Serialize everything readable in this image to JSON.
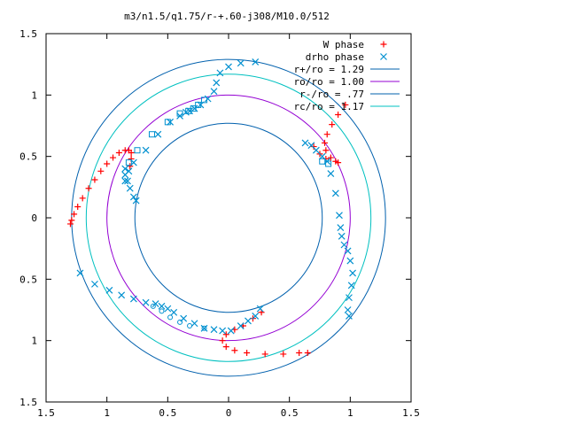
{
  "chart_data": {
    "type": "scatter",
    "title": "m3/n1.5/q1.75/r-+.60-j308/M10.0/512",
    "xlim": [
      -1.5,
      1.5
    ],
    "ylim": [
      -1.5,
      1.5
    ],
    "x_ticks": [
      -1.5,
      -1,
      -0.5,
      0,
      0.5,
      1,
      1.5
    ],
    "y_ticks": [
      -1.5,
      -1,
      -0.5,
      0,
      0.5,
      1,
      1.5
    ],
    "x_tick_labels": [
      "1.5",
      "1",
      "0.5",
      "0",
      "0.5",
      "1",
      "1.5"
    ],
    "y_tick_labels": [
      "1.5",
      "1",
      "0.5",
      "0",
      "0.5",
      "1",
      "1.5"
    ],
    "grid": false,
    "legend_position": "top-right",
    "circles": [
      {
        "name": "r+/ro = 1.29",
        "r": 1.29,
        "color": "#0060ad"
      },
      {
        "name": "ro/ro = 1.00",
        "r": 1.0,
        "color": "#9400d3"
      },
      {
        "name": "r-/ro = .77",
        "r": 0.77,
        "color": "#0060ad"
      },
      {
        "name": "rc/ro = 1.17",
        "r": 1.17,
        "color": "#00c0c0"
      }
    ],
    "series": [
      {
        "name": "W phase",
        "marker": "plus",
        "color": "#ff0000",
        "points": [
          [
            -1.3,
            -0.05
          ],
          [
            -1.29,
            -0.02
          ],
          [
            -1.27,
            0.03
          ],
          [
            -1.24,
            0.09
          ],
          [
            -1.2,
            0.16
          ],
          [
            -1.15,
            0.24
          ],
          [
            -1.1,
            0.31
          ],
          [
            -1.05,
            0.38
          ],
          [
            -1.0,
            0.44
          ],
          [
            -0.95,
            0.49
          ],
          [
            -0.9,
            0.53
          ],
          [
            -0.85,
            0.55
          ],
          [
            -0.82,
            0.55
          ],
          [
            -0.8,
            0.53
          ],
          [
            -0.8,
            0.48
          ],
          [
            -0.81,
            0.42
          ],
          [
            0.96,
            0.92
          ],
          [
            0.9,
            0.84
          ],
          [
            0.85,
            0.76
          ],
          [
            0.81,
            0.68
          ],
          [
            0.79,
            0.61
          ],
          [
            0.8,
            0.55
          ],
          [
            0.84,
            0.49
          ],
          [
            0.88,
            0.46
          ],
          [
            0.9,
            0.45
          ],
          [
            0.7,
            0.58
          ],
          [
            0.75,
            0.52
          ],
          [
            0.8,
            0.48
          ],
          [
            -0.05,
            -1.0
          ],
          [
            -0.02,
            -0.95
          ],
          [
            0.05,
            -0.91
          ],
          [
            0.12,
            -0.88
          ],
          [
            0.2,
            -0.82
          ],
          [
            0.27,
            -0.77
          ],
          [
            -0.02,
            -1.05
          ],
          [
            0.05,
            -1.08
          ],
          [
            0.15,
            -1.1
          ],
          [
            0.3,
            -1.11
          ],
          [
            0.45,
            -1.11
          ],
          [
            0.58,
            -1.1
          ],
          [
            0.65,
            -1.1
          ]
        ]
      },
      {
        "name": "drho phase",
        "marker": "cross",
        "color": "#0090d0",
        "points": [
          [
            0.22,
            1.27
          ],
          [
            0.1,
            1.26
          ],
          [
            0.0,
            1.23
          ],
          [
            -0.07,
            1.18
          ],
          [
            -0.1,
            1.1
          ],
          [
            -0.12,
            1.03
          ],
          [
            -0.17,
            0.97
          ],
          [
            -0.23,
            0.92
          ],
          [
            -0.28,
            0.89
          ],
          [
            -0.32,
            0.87
          ],
          [
            -0.35,
            0.86
          ],
          [
            -0.4,
            0.83
          ],
          [
            -0.48,
            0.78
          ],
          [
            -0.58,
            0.68
          ],
          [
            -0.68,
            0.55
          ],
          [
            -0.78,
            0.45
          ],
          [
            -0.82,
            0.38
          ],
          [
            -0.83,
            0.3
          ],
          [
            -0.81,
            0.24
          ],
          [
            -0.78,
            0.17
          ],
          [
            -0.76,
            0.14
          ],
          [
            -0.85,
            0.3
          ],
          [
            -0.85,
            0.35
          ],
          [
            -0.85,
            0.4
          ],
          [
            0.63,
            0.61
          ],
          [
            0.68,
            0.59
          ],
          [
            0.72,
            0.55
          ],
          [
            0.77,
            0.5
          ],
          [
            0.81,
            0.46
          ],
          [
            0.84,
            0.36
          ],
          [
            0.88,
            0.2
          ],
          [
            0.91,
            0.02
          ],
          [
            0.92,
            -0.08
          ],
          [
            0.93,
            -0.15
          ],
          [
            0.95,
            -0.22
          ],
          [
            0.98,
            -0.27
          ],
          [
            1.0,
            -0.35
          ],
          [
            1.02,
            -0.45
          ],
          [
            1.01,
            -0.55
          ],
          [
            0.99,
            -0.65
          ],
          [
            0.98,
            -0.75
          ],
          [
            0.99,
            -0.8
          ],
          [
            -1.22,
            -0.45
          ],
          [
            -1.1,
            -0.54
          ],
          [
            -0.98,
            -0.59
          ],
          [
            -0.88,
            -0.63
          ],
          [
            -0.78,
            -0.66
          ],
          [
            -0.68,
            -0.69
          ],
          [
            -0.6,
            -0.7
          ],
          [
            -0.55,
            -0.72
          ],
          [
            -0.5,
            -0.74
          ],
          [
            -0.45,
            -0.77
          ],
          [
            -0.37,
            -0.82
          ],
          [
            -0.28,
            -0.86
          ],
          [
            -0.2,
            -0.9
          ],
          [
            -0.12,
            -0.91
          ],
          [
            -0.05,
            -0.92
          ],
          [
            0.02,
            -0.92
          ],
          [
            0.1,
            -0.88
          ],
          [
            0.16,
            -0.84
          ],
          [
            0.22,
            -0.8
          ],
          [
            0.26,
            -0.74
          ]
        ]
      },
      {
        "name": "",
        "marker": "square",
        "color": "#0090d0",
        "points": [
          [
            -0.4,
            0.85
          ],
          [
            -0.33,
            0.87
          ],
          [
            -0.29,
            0.89
          ],
          [
            -0.25,
            0.92
          ],
          [
            -0.2,
            0.96
          ],
          [
            -0.5,
            0.78
          ],
          [
            -0.63,
            0.68
          ],
          [
            -0.75,
            0.55
          ],
          [
            -0.82,
            0.45
          ],
          [
            0.77,
            0.46
          ],
          [
            0.82,
            0.44
          ]
        ]
      },
      {
        "name": "",
        "marker": "circle",
        "color": "#0090d0",
        "points": [
          [
            -0.62,
            -0.72
          ],
          [
            -0.55,
            -0.76
          ],
          [
            -0.48,
            -0.81
          ],
          [
            -0.4,
            -0.85
          ],
          [
            -0.32,
            -0.88
          ],
          [
            -0.2,
            -0.9
          ]
        ]
      }
    ]
  }
}
